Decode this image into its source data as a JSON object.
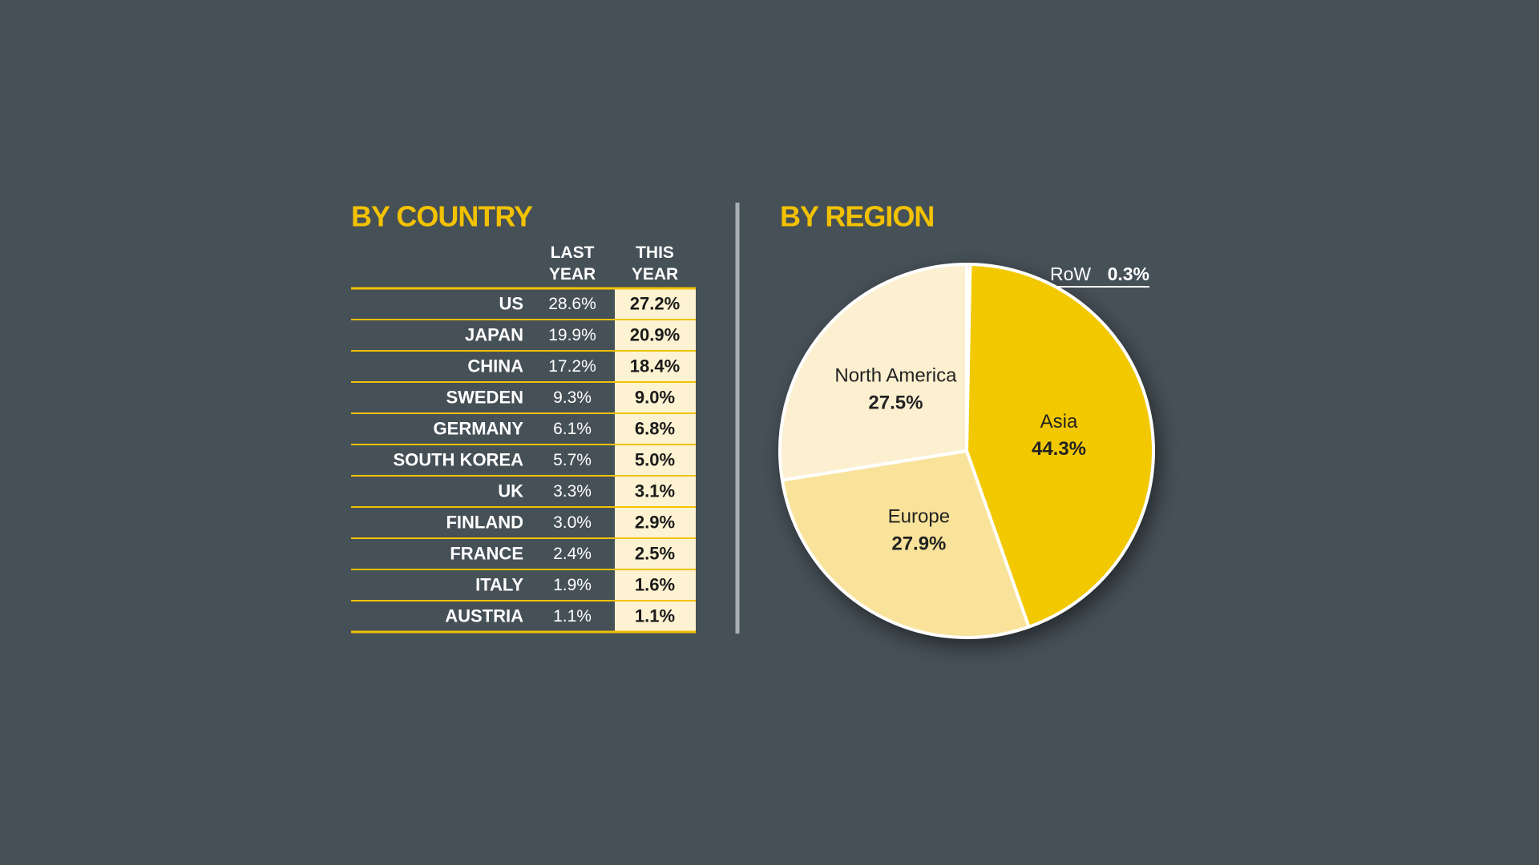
{
  "table": {
    "title": "BY COUNTRY",
    "columns": [
      "LAST YEAR",
      "THIS YEAR"
    ],
    "rows": [
      [
        "US",
        "28.6%",
        "27.2%"
      ],
      [
        "JAPAN",
        "19.9%",
        "20.9%"
      ],
      [
        "CHINA",
        "17.2%",
        "18.4%"
      ],
      [
        "SWEDEN",
        "9.3%",
        "9.0%"
      ],
      [
        "GERMANY",
        "6.1%",
        "6.8%"
      ],
      [
        "SOUTH KOREA",
        "5.7%",
        "5.0%"
      ],
      [
        "UK",
        "3.3%",
        "3.1%"
      ],
      [
        "FINLAND",
        "3.0%",
        "2.9%"
      ],
      [
        "FRANCE",
        "2.4%",
        "2.5%"
      ],
      [
        "ITALY",
        "1.9%",
        "1.6%"
      ],
      [
        "AUSTRIA",
        "1.1%",
        "1.1%"
      ]
    ]
  },
  "chart_data": {
    "type": "pie",
    "title": "BY REGION",
    "categories": [
      "RoW",
      "Asia",
      "Europe",
      "North America"
    ],
    "values": [
      0.3,
      44.3,
      27.9,
      27.5
    ],
    "value_labels": [
      "0.3%",
      "44.3%",
      "27.9%",
      "27.5%"
    ],
    "colors": [
      "#d9b000",
      "#f2c900",
      "#f9e39a",
      "#fcf0d0"
    ]
  }
}
